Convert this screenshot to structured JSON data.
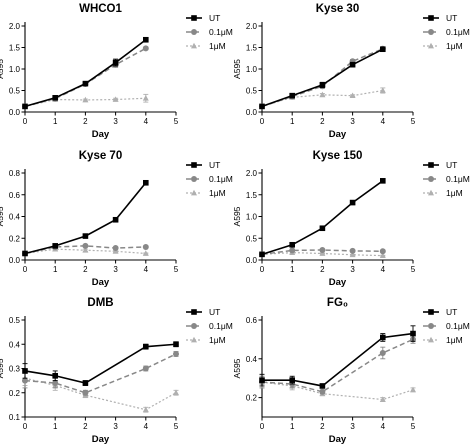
{
  "chart_data": [
    {
      "type": "line",
      "title": "WHCO1",
      "xlabel": "Day",
      "ylabel": "A595",
      "xlim": [
        0,
        5
      ],
      "ylim": [
        0,
        2.0
      ],
      "x_ticks": [
        "0",
        "1",
        "2",
        "3",
        "4",
        "5"
      ],
      "y_ticks": [
        "0.0",
        "0.5",
        "1.0",
        "1.5",
        "2.0"
      ],
      "legend_position": "right",
      "series": [
        {
          "name": "UT",
          "x": [
            0,
            1,
            2,
            3,
            4
          ],
          "y": [
            0.13,
            0.33,
            0.66,
            1.15,
            1.68
          ],
          "err": [
            0.02,
            0.03,
            0.03,
            0.08,
            0.03
          ]
        },
        {
          "name": "0.1μM",
          "x": [
            0,
            1,
            2,
            3,
            4
          ],
          "y": [
            0.13,
            0.31,
            0.65,
            1.1,
            1.48
          ],
          "err": [
            0.02,
            0.03,
            0.03,
            0.06,
            0.03
          ]
        },
        {
          "name": "1μM",
          "x": [
            0,
            1,
            2,
            3,
            4
          ],
          "y": [
            0.13,
            0.29,
            0.28,
            0.29,
            0.32
          ],
          "err": [
            0.02,
            0.03,
            0.02,
            0.03,
            0.09
          ]
        }
      ]
    },
    {
      "type": "line",
      "title": "Kyse 30",
      "xlabel": "Day",
      "ylabel": "A595",
      "xlim": [
        0,
        5
      ],
      "ylim": [
        0,
        2.0
      ],
      "x_ticks": [
        "0",
        "1",
        "2",
        "3",
        "4",
        "5"
      ],
      "y_ticks": [
        "0.0",
        "0.5",
        "1.0",
        "1.5",
        "2.0"
      ],
      "legend_position": "right",
      "series": [
        {
          "name": "UT",
          "x": [
            0,
            1,
            2,
            3,
            4
          ],
          "y": [
            0.13,
            0.38,
            0.63,
            1.1,
            1.46
          ],
          "err": [
            0.02,
            0.03,
            0.06,
            0.05,
            0.03
          ]
        },
        {
          "name": "0.1μM",
          "x": [
            0,
            1,
            2,
            3,
            4
          ],
          "y": [
            0.13,
            0.36,
            0.6,
            1.18,
            1.47
          ],
          "err": [
            0.02,
            0.03,
            0.05,
            0.04,
            0.03
          ]
        },
        {
          "name": "1μM",
          "x": [
            0,
            1,
            2,
            3,
            4
          ],
          "y": [
            0.13,
            0.34,
            0.4,
            0.38,
            0.5
          ],
          "err": [
            0.02,
            0.03,
            0.03,
            0.02,
            0.06
          ]
        }
      ]
    },
    {
      "type": "line",
      "title": "Kyse 70",
      "xlabel": "Day",
      "ylabel": "A595",
      "xlim": [
        0,
        5
      ],
      "ylim": [
        0,
        0.8
      ],
      "x_ticks": [
        "0",
        "1",
        "2",
        "3",
        "4",
        "5"
      ],
      "y_ticks": [
        "0.0",
        "0.2",
        "0.4",
        "0.6",
        "0.8"
      ],
      "legend_position": "right",
      "series": [
        {
          "name": "UT",
          "x": [
            0,
            1,
            2,
            3,
            4
          ],
          "y": [
            0.06,
            0.13,
            0.22,
            0.37,
            0.71
          ],
          "err": [
            0.005,
            0.01,
            0.01,
            0.01,
            0.01
          ]
        },
        {
          "name": "0.1μM",
          "x": [
            0,
            1,
            2,
            3,
            4
          ],
          "y": [
            0.06,
            0.12,
            0.13,
            0.11,
            0.12
          ],
          "err": [
            0.005,
            0.01,
            0.01,
            0.01,
            0.01
          ]
        },
        {
          "name": "1μM",
          "x": [
            0,
            1,
            2,
            3,
            4
          ],
          "y": [
            0.06,
            0.1,
            0.09,
            0.08,
            0.06
          ],
          "err": [
            0.005,
            0.01,
            0.01,
            0.01,
            0.005
          ]
        }
      ]
    },
    {
      "type": "line",
      "title": "Kyse 150",
      "xlabel": "Day",
      "ylabel": "A595",
      "xlim": [
        0,
        5
      ],
      "ylim": [
        0,
        2.0
      ],
      "x_ticks": [
        "0",
        "1",
        "2",
        "3",
        "4",
        "5"
      ],
      "y_ticks": [
        "0.0",
        "0.5",
        "1.0",
        "1.5",
        "2.0"
      ],
      "legend_position": "right",
      "series": [
        {
          "name": "UT",
          "x": [
            0,
            1,
            2,
            3,
            4
          ],
          "y": [
            0.13,
            0.35,
            0.73,
            1.32,
            1.82
          ],
          "err": [
            0.02,
            0.02,
            0.03,
            0.04,
            0.03
          ]
        },
        {
          "name": "0.1μM",
          "x": [
            0,
            1,
            2,
            3,
            4
          ],
          "y": [
            0.13,
            0.22,
            0.23,
            0.21,
            0.2
          ],
          "err": [
            0.02,
            0.02,
            0.02,
            0.02,
            0.02
          ]
        },
        {
          "name": "1μM",
          "x": [
            0,
            1,
            2,
            3,
            4
          ],
          "y": [
            0.13,
            0.17,
            0.15,
            0.12,
            0.1
          ],
          "err": [
            0.02,
            0.02,
            0.01,
            0.01,
            0.01
          ]
        }
      ]
    },
    {
      "type": "line",
      "title": "DMB",
      "xlabel": "Day",
      "ylabel": "A595",
      "xlim": [
        0,
        5
      ],
      "ylim": [
        0.1,
        0.5
      ],
      "x_ticks": [
        "0",
        "1",
        "2",
        "3",
        "4",
        "5"
      ],
      "y_ticks": [
        "0.1",
        "0.2",
        "0.3",
        "0.4",
        "0.5"
      ],
      "legend_position": "right",
      "series": [
        {
          "name": "UT",
          "x": [
            0,
            1,
            2,
            4,
            5
          ],
          "y": [
            0.29,
            0.27,
            0.24,
            0.39,
            0.4
          ],
          "err": [
            0.03,
            0.02,
            0.01,
            0.01,
            0.01
          ]
        },
        {
          "name": "0.1μM",
          "x": [
            0,
            1,
            2,
            4,
            5
          ],
          "y": [
            0.25,
            0.24,
            0.2,
            0.3,
            0.36
          ],
          "err": [
            0.03,
            0.02,
            0.01,
            0.01,
            0.01
          ]
        },
        {
          "name": "1μM",
          "x": [
            0,
            1,
            2,
            4,
            5
          ],
          "y": [
            0.26,
            0.23,
            0.19,
            0.13,
            0.2
          ],
          "err": [
            0.03,
            0.02,
            0.01,
            0.01,
            0.01
          ]
        }
      ]
    },
    {
      "type": "line",
      "title": "FG₀",
      "xlabel": "Day",
      "ylabel": "A595",
      "xlim": [
        0,
        5
      ],
      "ylim": [
        0.1,
        0.6
      ],
      "x_ticks": [
        "0",
        "1",
        "2",
        "3",
        "4",
        "5"
      ],
      "y_ticks": [
        "0.2",
        "0.4",
        "0.6"
      ],
      "y_tick_values": [
        0.2,
        0.4,
        0.6
      ],
      "legend_position": "right",
      "series": [
        {
          "name": "UT",
          "x": [
            0,
            1,
            2,
            4,
            5
          ],
          "y": [
            0.29,
            0.29,
            0.26,
            0.51,
            0.53
          ],
          "err": [
            0.03,
            0.02,
            0.01,
            0.02,
            0.04
          ]
        },
        {
          "name": "0.1μM",
          "x": [
            0,
            1,
            2,
            4,
            5
          ],
          "y": [
            0.28,
            0.27,
            0.23,
            0.43,
            0.5
          ],
          "err": [
            0.03,
            0.02,
            0.01,
            0.03,
            0.02
          ]
        },
        {
          "name": "1μM",
          "x": [
            0,
            1,
            2,
            4,
            5
          ],
          "y": [
            0.28,
            0.26,
            0.22,
            0.19,
            0.24
          ],
          "err": [
            0.03,
            0.02,
            0.01,
            0.01,
            0.01
          ]
        }
      ]
    }
  ],
  "colors": {
    "ut": "#000000",
    "dose_low": "#888888",
    "dose_high": "#b0b0b0"
  },
  "markers": {
    "ut": "square",
    "dose_low": "circle",
    "dose_high": "triangle"
  }
}
